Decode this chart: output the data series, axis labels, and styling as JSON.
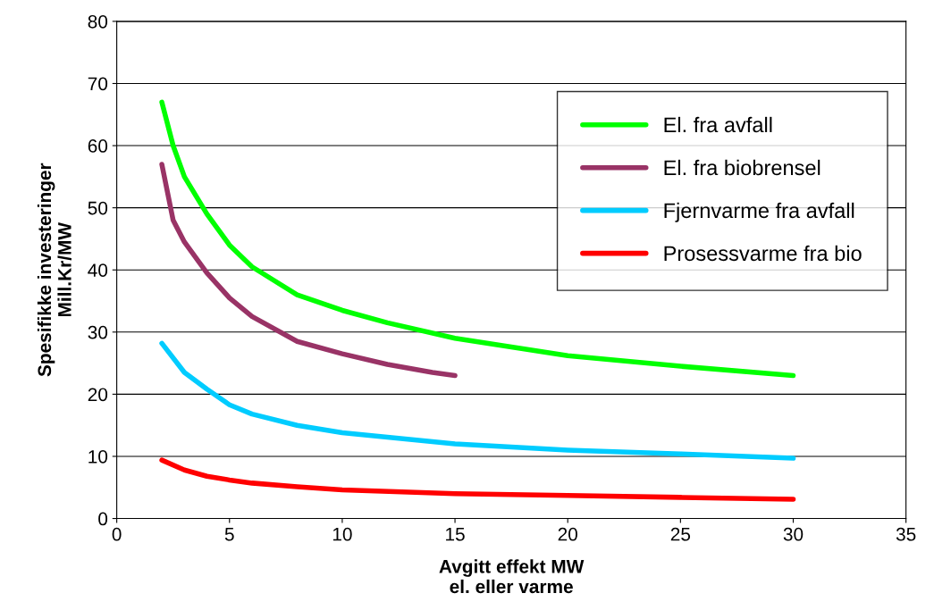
{
  "chart_data": {
    "type": "line",
    "xlabel": "Avgitt effekt MW\nel. eller varme",
    "ylabel": "Spesifikke investeringer\nMill.Kr/MW",
    "series": [
      {
        "name": "El. fra avfall",
        "color": "#00ff00",
        "x": [
          2,
          2.5,
          3,
          4,
          5,
          6,
          8,
          10,
          12,
          15,
          20,
          25,
          30
        ],
        "values": [
          67,
          60,
          55,
          49,
          44,
          40.5,
          36,
          33.5,
          31.5,
          29,
          26.2,
          24.5,
          23
        ]
      },
      {
        "name": "El. fra biobrensel",
        "color": "#993366",
        "x": [
          2,
          2.5,
          3,
          4,
          5,
          6,
          8,
          10,
          12,
          14,
          15
        ],
        "values": [
          57,
          48,
          44.5,
          39.5,
          35.5,
          32.5,
          28.5,
          26.5,
          24.8,
          23.5,
          23
        ]
      },
      {
        "name": "Fjernvarme fra avfall",
        "color": "#00ccff",
        "x": [
          2,
          3,
          4,
          5,
          6,
          8,
          10,
          15,
          20,
          25,
          30
        ],
        "values": [
          28.2,
          23.5,
          20.8,
          18.3,
          16.8,
          15,
          13.8,
          12,
          11,
          10.4,
          9.7
        ]
      },
      {
        "name": "Prosessvarme fra bio",
        "color": "#ff0000",
        "x": [
          2,
          3,
          4,
          5,
          6,
          8,
          10,
          15,
          20,
          25,
          30
        ],
        "values": [
          9.4,
          7.8,
          6.8,
          6.2,
          5.7,
          5.1,
          4.6,
          4,
          3.7,
          3.4,
          3.1
        ]
      }
    ],
    "xlim": [
      0,
      35
    ],
    "xticks": [
      0,
      5,
      10,
      15,
      20,
      25,
      30,
      35
    ],
    "ylim": [
      0,
      80
    ],
    "yticks": [
      0,
      10,
      20,
      30,
      40,
      50,
      60,
      70,
      80
    ],
    "grid": "y",
    "legend": "top right",
    "line_style": "solid",
    "marker": "none"
  }
}
